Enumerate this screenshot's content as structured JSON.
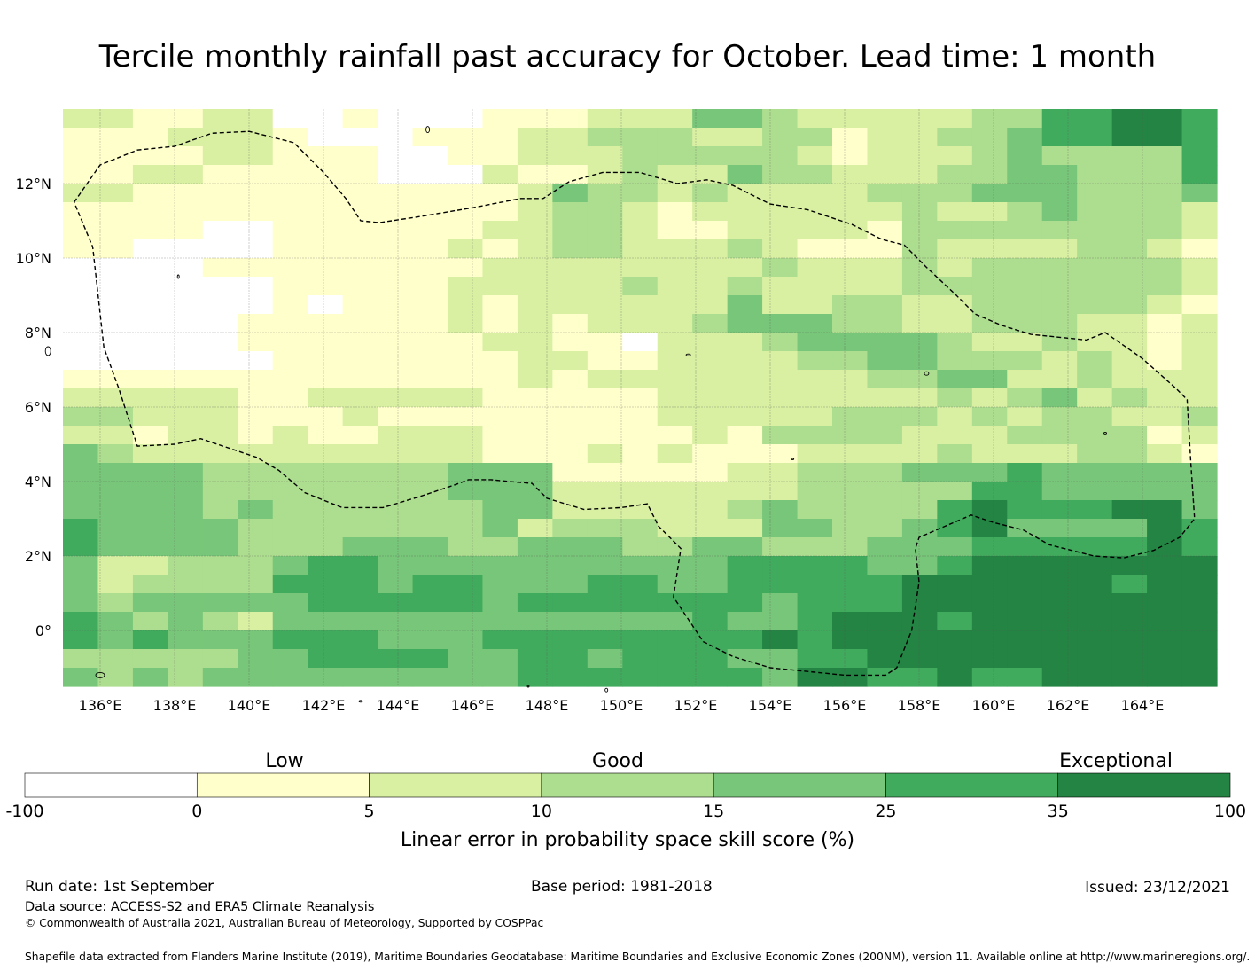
{
  "title": "Tercile monthly rainfall past accuracy for October. Lead time: 1 month",
  "map": {
    "lat_ticks": [
      {
        "lat": 12,
        "label": "12°N"
      },
      {
        "lat": 10,
        "label": "10°N"
      },
      {
        "lat": 8,
        "label": "8°N"
      },
      {
        "lat": 6,
        "label": "6°N"
      },
      {
        "lat": 4,
        "label": "4°N"
      },
      {
        "lat": 2,
        "label": "2°N"
      },
      {
        "lat": 0,
        "label": "0°"
      }
    ],
    "lon_ticks": [
      {
        "lon": 136,
        "label": "136°E"
      },
      {
        "lon": 138,
        "label": "138°E"
      },
      {
        "lon": 140,
        "label": "140°E"
      },
      {
        "lon": 142,
        "label": "142°E"
      },
      {
        "lon": 144,
        "label": "144°E"
      },
      {
        "lon": 146,
        "label": "146°E"
      },
      {
        "lon": 148,
        "label": "148°E"
      },
      {
        "lon": 150,
        "label": "150°E"
      },
      {
        "lon": 152,
        "label": "152°E"
      },
      {
        "lon": 154,
        "label": "154°E"
      },
      {
        "lon": 156,
        "label": "156°E"
      },
      {
        "lon": 158,
        "label": "158°E"
      },
      {
        "lon": 160,
        "label": "160°E"
      },
      {
        "lon": 162,
        "label": "162°E"
      },
      {
        "lon": 164,
        "label": "164°E"
      }
    ],
    "lon_range": [
      135,
      166
    ],
    "lat_range": [
      -1.5,
      14
    ],
    "grid_cell_deg": 0.833,
    "grid_rows_north_to_south": [
      "221122001000111222443222223355665",
      "111222100011122333223312233455665",
      "111122111001122233333212223433335",
      "112211111000211232243322233443335",
      "221111111111124332322223334443334",
      "111111111111123321222222322343332",
      "111100111111223321122221333333332",
      "110000111112123322232111322223321",
      "000011111111222222223222323333332",
      "000000111112222232232222333333332",
      "000000101112122222242233223333321",
      "000001111112121222344433223332212",
      "000001111111221102223444432232212",
      "000000111111122112222334433323212",
      "111111111111121222222223344223222",
      "222221122222111112222222232342322",
      "332221112111111112222233323233223",
      "221221211222111111213333222333312",
      "432222222222111212111222232223321",
      "444433333334441111122333444544444",
      "444433333334442222222333335544444",
      "444434333333442222234333356555664",
      "544443333333423332224433456444465",
      "544443334443344433443334445555565",
      "422333455444444444455554456666666",
      "423333555455444554455555666666566",
      "434444455555455555554555666666666",
      "543432444444444444544566656666666",
      "545444555444555555556566666666666",
      "333334455554455455544556666666666",
      "434344444444455555554665565566666"
    ]
  },
  "colorbar": {
    "categories": [
      "Low",
      "Good",
      "Exceptional"
    ],
    "bins": [
      {
        "from": -100,
        "to": 0,
        "color": "#ffffff"
      },
      {
        "from": 0,
        "to": 5,
        "color": "#ffffcc"
      },
      {
        "from": 5,
        "to": 10,
        "color": "#d9f0a3"
      },
      {
        "from": 10,
        "to": 15,
        "color": "#addd8e"
      },
      {
        "from": 15,
        "to": 25,
        "color": "#78c679"
      },
      {
        "from": 25,
        "to": 35,
        "color": "#41ab5d"
      },
      {
        "from": 35,
        "to": 100,
        "color": "#238443"
      }
    ],
    "tick_labels": [
      "-100",
      "0",
      "5",
      "10",
      "15",
      "25",
      "35",
      "100"
    ],
    "label": "Linear error in probability space skill score (%)"
  },
  "footer": {
    "run_date": "Run date: 1st September",
    "base_period": "Base period: 1981-2018",
    "issued": "Issued: 23/12/2021",
    "data_source": "Data source: ACCESS-S2 and ERA5 Climate Reanalysis",
    "copyright": "© Commonwealth of Australia 2021, Australian Bureau of Meteorology, Supported by COSPPac",
    "shapefile": "Shapefile data extracted from Flanders Marine Institute (2019), Maritime Boundaries Geodatabase: Maritime Boundaries and Exclusive Economic Zones (200NM), version 11. Available online at http://www.marineregions.org/."
  }
}
